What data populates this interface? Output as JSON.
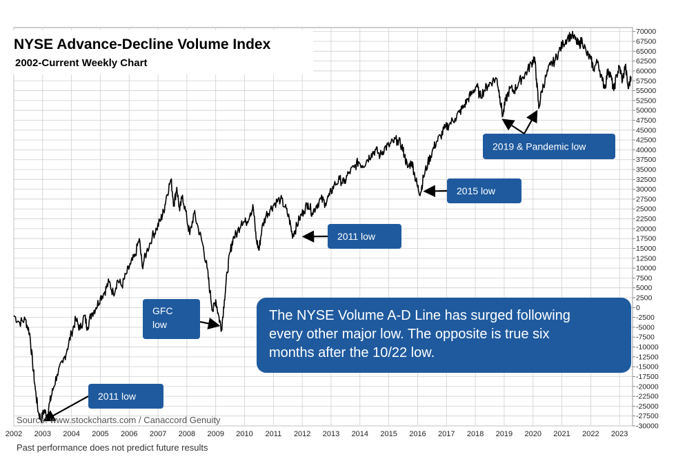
{
  "chart_data": {
    "type": "line",
    "title": "NYSE Advance-Decline Volume Index",
    "subtitle": "2002-Current Weekly Chart",
    "xlabel": "",
    "ylabel": "",
    "xlim": [
      2002.0,
      2023.45
    ],
    "ylim": [
      -30000,
      71000
    ],
    "x_ticks": [
      "2002",
      "2003",
      "2004",
      "2005",
      "2006",
      "2007",
      "2008",
      "2009",
      "2010",
      "2011",
      "2012",
      "2013",
      "2014",
      "2015",
      "2016",
      "2017",
      "2018",
      "2019",
      "2020",
      "2021",
      "2022",
      "2023"
    ],
    "y_ticks": [
      -30000,
      -27500,
      -25000,
      -22500,
      -20000,
      -17500,
      -15000,
      -12500,
      -10000,
      -7500,
      -5000,
      -2500,
      0,
      2500,
      5000,
      7500,
      10000,
      12500,
      15000,
      17500,
      20000,
      22500,
      25000,
      27500,
      30000,
      32500,
      35000,
      37500,
      40000,
      42500,
      45000,
      47500,
      50000,
      52500,
      55000,
      57500,
      60000,
      62500,
      65000,
      67500,
      70000
    ],
    "grid": true,
    "series": [
      {
        "color": "#000000",
        "points": [
          [
            2002.0,
            -2000
          ],
          [
            2002.2,
            -3800
          ],
          [
            2002.4,
            -3000
          ],
          [
            2002.55,
            -6500
          ],
          [
            2002.65,
            -14000
          ],
          [
            2002.75,
            -21000
          ],
          [
            2002.85,
            -26500
          ],
          [
            2002.95,
            -28500
          ],
          [
            2003.05,
            -26000
          ],
          [
            2003.15,
            -27500
          ],
          [
            2003.25,
            -24000
          ],
          [
            2003.35,
            -21000
          ],
          [
            2003.5,
            -17000
          ],
          [
            2003.7,
            -14000
          ],
          [
            2003.85,
            -10500
          ],
          [
            2004.0,
            -6500
          ],
          [
            2004.15,
            -3000
          ],
          [
            2004.3,
            -5500
          ],
          [
            2004.45,
            -2000
          ],
          [
            2004.55,
            -5000
          ],
          [
            2004.7,
            -1500
          ],
          [
            2004.85,
            0
          ],
          [
            2005.0,
            2500
          ],
          [
            2005.15,
            4000
          ],
          [
            2005.3,
            6500
          ],
          [
            2005.45,
            3500
          ],
          [
            2005.6,
            7000
          ],
          [
            2005.75,
            5500
          ],
          [
            2005.9,
            8500
          ],
          [
            2006.05,
            11000
          ],
          [
            2006.2,
            13000
          ],
          [
            2006.35,
            17500
          ],
          [
            2006.45,
            10500
          ],
          [
            2006.6,
            14000
          ],
          [
            2006.8,
            18000
          ],
          [
            2006.95,
            20000
          ],
          [
            2007.1,
            22500
          ],
          [
            2007.2,
            24500
          ],
          [
            2007.3,
            28500
          ],
          [
            2007.45,
            32500
          ],
          [
            2007.55,
            26000
          ],
          [
            2007.65,
            30500
          ],
          [
            2007.75,
            24500
          ],
          [
            2007.85,
            28500
          ],
          [
            2008.0,
            22500
          ],
          [
            2008.1,
            18500
          ],
          [
            2008.25,
            24000
          ],
          [
            2008.4,
            20000
          ],
          [
            2008.55,
            16000
          ],
          [
            2008.7,
            10000
          ],
          [
            2008.8,
            4000
          ],
          [
            2008.9,
            -1000
          ],
          [
            2009.0,
            2000
          ],
          [
            2009.1,
            -2000
          ],
          [
            2009.2,
            -5500
          ],
          [
            2009.3,
            2000
          ],
          [
            2009.4,
            9000
          ],
          [
            2009.5,
            14000
          ],
          [
            2009.6,
            17500
          ],
          [
            2009.75,
            19000
          ],
          [
            2009.9,
            22000
          ],
          [
            2010.05,
            21500
          ],
          [
            2010.2,
            24000
          ],
          [
            2010.3,
            25500
          ],
          [
            2010.4,
            17500
          ],
          [
            2010.5,
            14500
          ],
          [
            2010.6,
            20000
          ],
          [
            2010.75,
            23500
          ],
          [
            2010.9,
            25000
          ],
          [
            2011.05,
            26500
          ],
          [
            2011.25,
            27500
          ],
          [
            2011.4,
            25500
          ],
          [
            2011.55,
            22500
          ],
          [
            2011.65,
            18500
          ],
          [
            2011.75,
            19500
          ],
          [
            2011.9,
            22500
          ],
          [
            2012.05,
            24500
          ],
          [
            2012.2,
            26500
          ],
          [
            2012.35,
            24000
          ],
          [
            2012.5,
            26000
          ],
          [
            2012.65,
            27500
          ],
          [
            2012.8,
            26500
          ],
          [
            2012.95,
            28500
          ],
          [
            2013.1,
            31000
          ],
          [
            2013.3,
            32500
          ],
          [
            2013.45,
            31500
          ],
          [
            2013.6,
            34000
          ],
          [
            2013.8,
            35500
          ],
          [
            2013.95,
            37000
          ],
          [
            2014.1,
            36000
          ],
          [
            2014.25,
            37500
          ],
          [
            2014.4,
            39000
          ],
          [
            2014.55,
            40000
          ],
          [
            2014.7,
            38500
          ],
          [
            2014.85,
            40500
          ],
          [
            2015.0,
            41000
          ],
          [
            2015.15,
            42000
          ],
          [
            2015.3,
            42500
          ],
          [
            2015.45,
            41000
          ],
          [
            2015.55,
            38500
          ],
          [
            2015.65,
            35500
          ],
          [
            2015.8,
            37000
          ],
          [
            2015.9,
            33500
          ],
          [
            2016.0,
            30500
          ],
          [
            2016.1,
            29000
          ],
          [
            2016.2,
            33000
          ],
          [
            2016.35,
            36500
          ],
          [
            2016.5,
            39500
          ],
          [
            2016.65,
            42000
          ],
          [
            2016.8,
            43500
          ],
          [
            2016.95,
            45500
          ],
          [
            2017.1,
            46500
          ],
          [
            2017.3,
            48000
          ],
          [
            2017.45,
            49500
          ],
          [
            2017.6,
            51000
          ],
          [
            2017.75,
            53000
          ],
          [
            2017.9,
            54500
          ],
          [
            2018.05,
            56500
          ],
          [
            2018.15,
            53500
          ],
          [
            2018.3,
            55000
          ],
          [
            2018.45,
            56500
          ],
          [
            2018.6,
            57500
          ],
          [
            2018.75,
            58000
          ],
          [
            2018.85,
            53500
          ],
          [
            2018.95,
            48500
          ],
          [
            2019.05,
            52500
          ],
          [
            2019.2,
            55500
          ],
          [
            2019.35,
            55000
          ],
          [
            2019.5,
            57000
          ],
          [
            2019.65,
            58500
          ],
          [
            2019.8,
            60000
          ],
          [
            2019.95,
            62000
          ],
          [
            2020.05,
            63500
          ],
          [
            2020.12,
            58000
          ],
          [
            2020.2,
            50500
          ],
          [
            2020.3,
            55000
          ],
          [
            2020.45,
            58500
          ],
          [
            2020.6,
            61500
          ],
          [
            2020.75,
            62500
          ],
          [
            2020.9,
            65000
          ],
          [
            2021.05,
            67000
          ],
          [
            2021.2,
            68500
          ],
          [
            2021.35,
            69000
          ],
          [
            2021.5,
            67500
          ],
          [
            2021.6,
            66500
          ],
          [
            2021.7,
            68000
          ],
          [
            2021.85,
            64500
          ],
          [
            2022.0,
            63000
          ],
          [
            2022.1,
            60500
          ],
          [
            2022.25,
            62500
          ],
          [
            2022.4,
            57500
          ],
          [
            2022.5,
            56000
          ],
          [
            2022.6,
            60500
          ],
          [
            2022.7,
            58500
          ],
          [
            2022.8,
            55000
          ],
          [
            2022.9,
            59000
          ],
          [
            2023.0,
            61000
          ],
          [
            2023.1,
            57500
          ],
          [
            2023.2,
            61500
          ],
          [
            2023.3,
            55500
          ],
          [
            2023.4,
            58500
          ]
        ]
      }
    ],
    "annotations": [
      {
        "lines": [
          "2011 low"
        ],
        "target": [
          2002.95,
          -28500
        ]
      },
      {
        "lines": [
          "GFC",
          "low"
        ],
        "target": [
          2009.2,
          -4500
        ]
      },
      {
        "lines": [
          "2011 low"
        ],
        "target": [
          2011.95,
          18000
        ]
      },
      {
        "lines": [
          "2015 low"
        ],
        "target": [
          2016.15,
          29500
        ]
      },
      {
        "lines": [
          "2019 & Pandemic low"
        ],
        "target": [
          2019.0,
          48500
        ],
        "target2": [
          2020.2,
          50500
        ]
      },
      {
        "lines": [
          "The NYSE Volume A-D Line has surged following",
          "every other major low.  The opposite is true six",
          "months after the 10/22 low."
        ]
      }
    ],
    "source": "Source: www.stockcharts.com / Canaccord Genuity",
    "footer": "Past performance does not predict future results",
    "colors": {
      "callout": "#1f5a9e",
      "line": "#000000",
      "grid": "#cfcfcf"
    }
  }
}
